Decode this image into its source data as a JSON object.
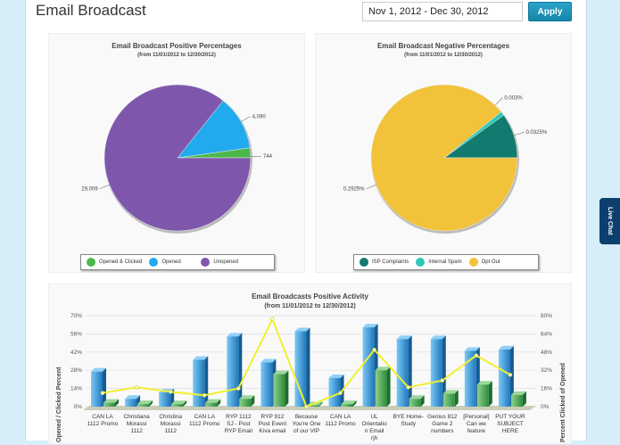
{
  "header": {
    "title": "Email Broadcast",
    "date_range": "Nov 1, 2012 - Dec 30, 2012",
    "apply_label": "Apply"
  },
  "live_chat": "Live Chat",
  "chart_data": [
    {
      "type": "pie",
      "title": "Email Broadcast Positive Percentages",
      "subtitle": "(from 11/01/2012 to 12/30/2012)",
      "slices": [
        {
          "name": "Opened & Clicked",
          "value": 744,
          "label": "744",
          "color": "#4cb84c"
        },
        {
          "name": "Opened",
          "value": 4090,
          "label": "4,090",
          "color": "#22aaee"
        },
        {
          "name": "Unopened",
          "value": 29009,
          "label": "29,009",
          "color": "#7e57ad"
        }
      ],
      "legend": "bottom"
    },
    {
      "type": "pie",
      "title": "Email Broadcast Negative Percentages",
      "subtitle": "(from 11/01/2012 to 12/30/2012)",
      "slices": [
        {
          "name": "ISP Complaints",
          "value": 0.0325,
          "label": "0.0325%",
          "color": "#127a6e"
        },
        {
          "name": "Internal Spam",
          "value": 0.003,
          "label": "0.003%",
          "color": "#2cc8b8"
        },
        {
          "name": "Opt Out",
          "value": 0.2925,
          "label": "0.2925%",
          "color": "#f2c23a"
        }
      ],
      "legend": "bottom"
    },
    {
      "type": "bar",
      "title": "Email Broadcasts Positive Activity",
      "subtitle": "(from 11/01/2012 to 12/30/2012)",
      "ylabel": "Opened / Clicked Percent",
      "y2label": "Percent Clicked of Opened",
      "ylim": [
        0,
        70
      ],
      "yticks": [
        "0%",
        "14%",
        "28%",
        "42%",
        "56%",
        "70%"
      ],
      "y2lim": [
        0,
        80
      ],
      "y2ticks": [
        "0%",
        "16%",
        "32%",
        "48%",
        "64%",
        "80%"
      ],
      "categories": [
        "CAN LA 1112 Promo",
        "Christiana Morassi 1112",
        "Christina Morassi 1112",
        "CAN LA 1112 Promo",
        "RYP 1112 SJ - Post RYP Email",
        "RYP 912 Post Event Kiva email",
        "Because You're One of our VIP",
        "CAN LA 1112 Promo",
        "UL Orientatio n Email rjh",
        "BYE Home- Study",
        "Genius 812 Game 2 numbers",
        "[Personal] Can we feature",
        "PUT YOUR SUBJECT HERE"
      ],
      "series": [
        {
          "type": "bar",
          "axis": "left",
          "color": "#2f8fd0",
          "values": [
            27,
            6,
            11,
            36,
            54,
            34,
            58,
            22,
            61,
            52,
            52,
            43,
            44
          ]
        },
        {
          "type": "bar",
          "axis": "left",
          "color": "#4aa84a",
          "values": [
            3,
            2,
            2,
            3,
            6,
            25,
            1,
            2,
            28,
            6,
            10,
            17,
            9
          ]
        },
        {
          "type": "line",
          "axis": "right",
          "color": "#f0f030",
          "values": [
            12,
            17,
            13,
            10,
            16,
            77,
            0,
            12,
            50,
            17,
            23,
            45,
            28
          ]
        }
      ],
      "grid": true
    }
  ]
}
